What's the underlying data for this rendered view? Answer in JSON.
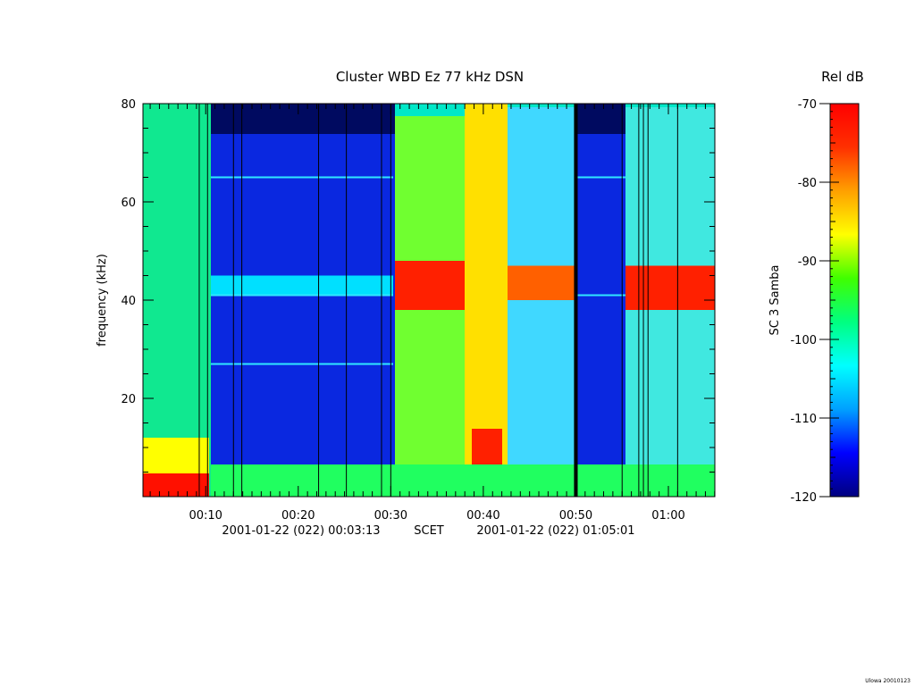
{
  "chart_data": [
    {
      "type": "heatmap",
      "title": "Cluster WBD Ez 77 kHz DSN",
      "ylabel": "frequency (kHz)",
      "ylim": [
        0,
        80
      ],
      "y_ticks": [
        20,
        40,
        60,
        80
      ],
      "x_ticks": [
        "00:10",
        "00:20",
        "00:30",
        "00:40",
        "00:50",
        "01:00"
      ],
      "x_tick_minutes": [
        10,
        20,
        30,
        40,
        50,
        60
      ],
      "x_range_minutes": [
        3.22,
        65.02
      ],
      "x_range_labels": {
        "start": "2001-01-22 (022) 00:03:13",
        "mid": "SCET",
        "end": "2001-01-22 (022) 01:05:01"
      },
      "colorbar": {
        "title": "Rel dB",
        "label": "SC 3 Samba",
        "range": [
          -120,
          -70
        ],
        "ticks": [
          "-70",
          "-80",
          "-90",
          "-100",
          "-110",
          "-120"
        ],
        "tick_values": [
          -70,
          -80,
          -90,
          -100,
          -110,
          -120
        ],
        "colors": [
          "#00007f",
          "#0000ff",
          "#00a0ff",
          "#00ffff",
          "#00ff80",
          "#40ff00",
          "#ffff00",
          "#ffa000",
          "#ff3000",
          "#ff0000"
        ]
      },
      "grid": false,
      "footer": "Ulowa 20010123"
    }
  ]
}
